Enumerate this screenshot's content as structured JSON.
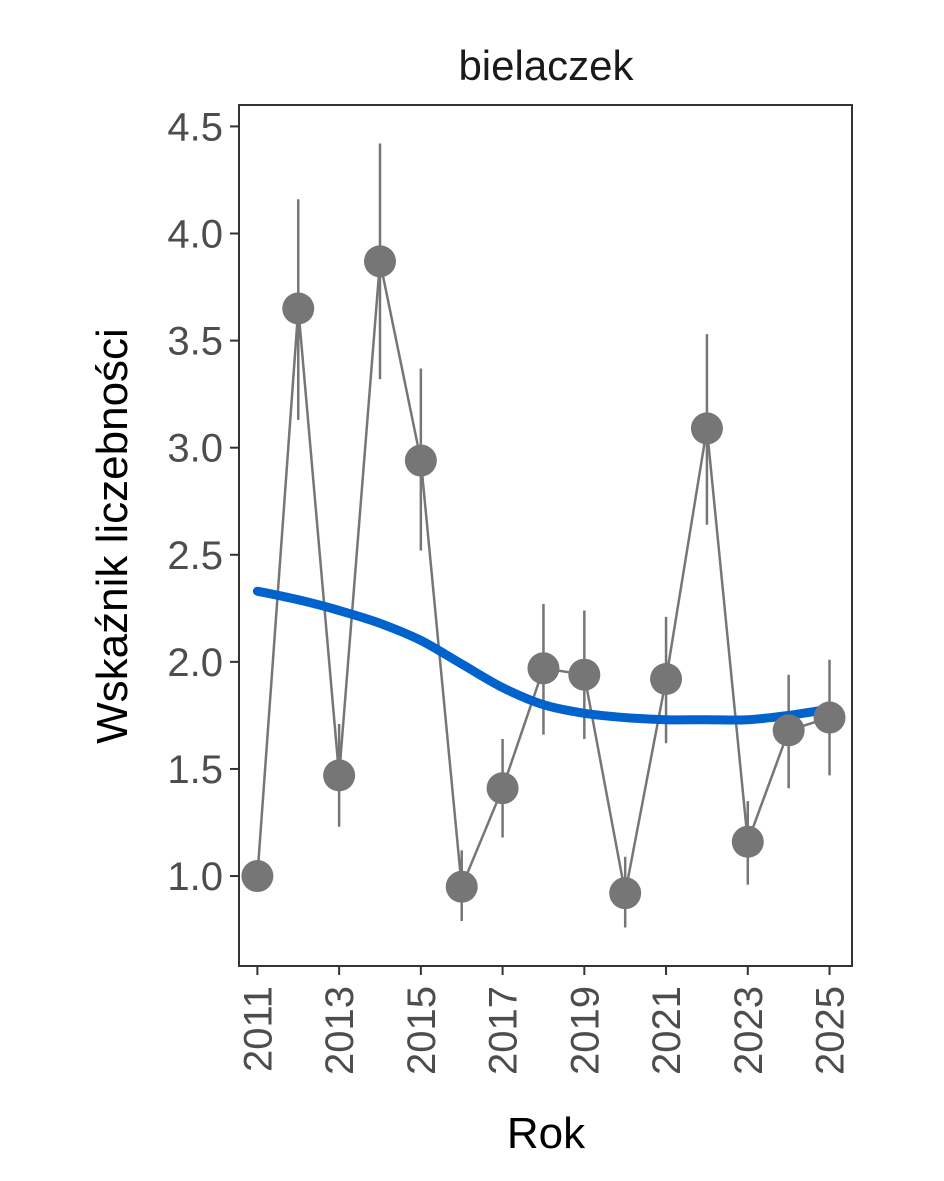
{
  "colors": {
    "points": "#767676",
    "errorbars": "#767676",
    "trend": "#0062cc",
    "panel_border": "#333333",
    "tick_text": "#4d4d4d"
  },
  "chart_data": {
    "type": "line",
    "title": "bielaczek",
    "xlabel": "Rok",
    "ylabel": "Wskaźnik liczebności",
    "xlim": [
      2010.55,
      2025.55
    ],
    "ylim": [
      0.58,
      4.6
    ],
    "x_ticks": [
      2011,
      2013,
      2015,
      2017,
      2019,
      2021,
      2023,
      2025
    ],
    "x_tick_labels": [
      "2011",
      "2013",
      "2015",
      "2017",
      "2019",
      "2021",
      "2023",
      "2025"
    ],
    "y_ticks": [
      1.0,
      1.5,
      2.0,
      2.5,
      3.0,
      3.5,
      4.0,
      4.5
    ],
    "y_tick_labels": [
      "1.0",
      "1.5",
      "2.0",
      "2.5",
      "3.0",
      "3.5",
      "4.0",
      "4.5"
    ],
    "grid": false,
    "series": [
      {
        "type": "line+points+errorbars",
        "x": [
          2011,
          2012,
          2013,
          2014,
          2015,
          2016,
          2017,
          2018,
          2019,
          2020,
          2021,
          2022,
          2023,
          2024,
          2025
        ],
        "values": [
          1.0,
          3.65,
          1.47,
          3.87,
          2.94,
          0.95,
          1.41,
          1.97,
          1.94,
          0.92,
          1.92,
          3.09,
          1.16,
          1.68,
          1.74
        ],
        "lower": [
          null,
          3.13,
          1.23,
          3.32,
          2.52,
          0.79,
          1.18,
          1.66,
          1.64,
          0.76,
          1.62,
          2.64,
          0.96,
          1.41,
          1.47
        ],
        "upper": [
          null,
          4.16,
          1.71,
          4.42,
          3.37,
          1.12,
          1.64,
          2.27,
          2.24,
          1.09,
          2.21,
          3.53,
          1.35,
          1.94,
          2.01
        ]
      },
      {
        "type": "smooth-trend",
        "x": [
          2011,
          2012,
          2013,
          2014,
          2015,
          2016,
          2017,
          2018,
          2019,
          2020,
          2021,
          2022,
          2023,
          2024,
          2025
        ],
        "values": [
          2.33,
          2.29,
          2.24,
          2.18,
          2.1,
          1.99,
          1.88,
          1.8,
          1.76,
          1.74,
          1.73,
          1.73,
          1.73,
          1.75,
          1.78
        ]
      }
    ]
  }
}
